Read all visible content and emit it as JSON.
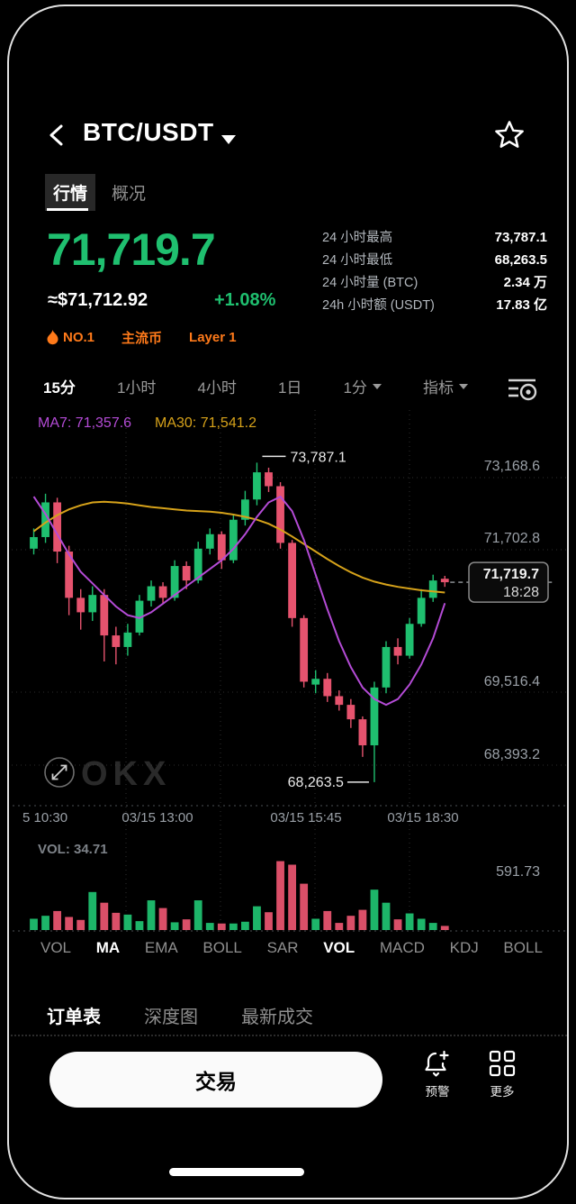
{
  "header": {
    "title": "BTC/USDT"
  },
  "tabs": [
    {
      "label": "行情",
      "active": true
    },
    {
      "label": "概况",
      "active": false
    }
  ],
  "price": {
    "last": "71,719.7",
    "fiat": "≈$71,712.92",
    "change": "+1.08%"
  },
  "stats": [
    {
      "label": "24 小时最高",
      "value": "73,787.1"
    },
    {
      "label": "24 小时最低",
      "value": "68,263.5"
    },
    {
      "label": "24 小时量 (BTC)",
      "value": "2.34 万"
    },
    {
      "label": "24h 小时额 (USDT)",
      "value": "17.83 亿"
    }
  ],
  "badges": [
    {
      "label": "NO.1"
    },
    {
      "label": "主流币"
    },
    {
      "label": "Layer 1"
    }
  ],
  "timeframes": [
    {
      "label": "15分",
      "active": true
    },
    {
      "label": "1小时",
      "active": false
    },
    {
      "label": "4小时",
      "active": false
    },
    {
      "label": "1日",
      "active": false
    },
    {
      "label": "1分",
      "active": false,
      "dropdown": true
    },
    {
      "label": "指标",
      "active": false,
      "dropdown": true
    }
  ],
  "chart": {
    "ma7_label": "MA7: 71,357.6",
    "ma30_label": "MA30: 71,541.2",
    "y_axis": [
      "73,168.6",
      "71,702.8",
      "69,516.4",
      "68,393.2"
    ],
    "x_axis": [
      "5 10:30",
      "03/15 13:00",
      "03/15 15:45",
      "03/15 18:30"
    ],
    "annotations": {
      "high": "73,787.1",
      "low": "68,263.5",
      "last": "71,719.7",
      "last_time": "18:28"
    },
    "watermark": "OKX",
    "vol_label": "VOL: 34.71",
    "vol_axis": "591.73"
  },
  "chart_data": {
    "type": "candlestick",
    "interval": "15m",
    "pair": "BTC/USDT",
    "ylim": [
      67950,
      74650
    ],
    "y_gridline_values": [
      73168.6,
      71702.8,
      69516.4,
      68393.2
    ],
    "x_ticks": [
      "5 10:30",
      "03/15 13:00",
      "03/15 15:45",
      "03/15 18:30"
    ],
    "high": 73787.1,
    "low": 68263.5,
    "last": 71719.7,
    "last_time": "18:28",
    "vol_max": 591.73,
    "vol_last": 34.71,
    "candles": [
      [
        72300,
        72650,
        72200,
        72500
      ],
      [
        72500,
        73250,
        72400,
        73100
      ],
      [
        73100,
        73180,
        72050,
        72250
      ],
      [
        72250,
        72350,
        71150,
        71450
      ],
      [
        71450,
        71600,
        70900,
        71200
      ],
      [
        71200,
        71650,
        71050,
        71500
      ],
      [
        71500,
        71600,
        70350,
        70800
      ],
      [
        70800,
        70950,
        70300,
        70600
      ],
      [
        70600,
        71000,
        70450,
        70850
      ],
      [
        70850,
        71500,
        70800,
        71400
      ],
      [
        71400,
        71750,
        71300,
        71650
      ],
      [
        71650,
        71720,
        71350,
        71450
      ],
      [
        71450,
        72100,
        71400,
        72000
      ],
      [
        72000,
        72080,
        71600,
        71750
      ],
      [
        71750,
        72420,
        71700,
        72300
      ],
      [
        72300,
        72650,
        72200,
        72550
      ],
      [
        72550,
        72600,
        71950,
        72100
      ],
      [
        72100,
        72900,
        72050,
        72800
      ],
      [
        72800,
        73300,
        72700,
        73150
      ],
      [
        73150,
        73787.1,
        73050,
        73620
      ],
      [
        73620,
        73700,
        73280,
        73380
      ],
      [
        73380,
        73450,
        72300,
        72400
      ],
      [
        72400,
        72450,
        70950,
        71100
      ],
      [
        71100,
        71150,
        69900,
        70000
      ],
      [
        69950,
        70200,
        69800,
        70050
      ],
      [
        70050,
        70150,
        69650,
        69750
      ],
      [
        69750,
        69850,
        69500,
        69600
      ],
      [
        69600,
        69700,
        69200,
        69350
      ],
      [
        69350,
        69400,
        68700,
        68900
      ],
      [
        68900,
        70000,
        68263.5,
        69900
      ],
      [
        69900,
        70700,
        69800,
        70600
      ],
      [
        70600,
        70750,
        70300,
        70450
      ],
      [
        70450,
        71100,
        70400,
        71000
      ],
      [
        71000,
        71600,
        70950,
        71450
      ],
      [
        71450,
        71850,
        71380,
        71750
      ],
      [
        71780,
        71830,
        71640,
        71719.7
      ]
    ],
    "volumes": [
      95,
      120,
      160,
      110,
      85,
      320,
      230,
      145,
      130,
      75,
      250,
      185,
      65,
      90,
      250,
      60,
      55,
      55,
      70,
      200,
      150,
      580,
      550,
      390,
      95,
      160,
      60,
      120,
      170,
      340,
      230,
      90,
      140,
      95,
      60,
      34.71
    ],
    "ma7": [
      73200,
      72900,
      72550,
      72200,
      71900,
      71700,
      71500,
      71300,
      71150,
      71100,
      71200,
      71350,
      71500,
      71650,
      71800,
      71950,
      72100,
      72300,
      72550,
      72850,
      73100,
      73200,
      72950,
      72450,
      71850,
      71250,
      70700,
      70250,
      69900,
      69700,
      69600,
      69700,
      69950,
      70300,
      70750,
      71357.6
    ],
    "ma30": [
      72600,
      72750,
      72880,
      72980,
      73050,
      73100,
      73110,
      73100,
      73080,
      73050,
      73020,
      73000,
      72980,
      72960,
      72950,
      72940,
      72920,
      72890,
      72850,
      72800,
      72730,
      72630,
      72510,
      72380,
      72250,
      72120,
      72000,
      71890,
      71800,
      71730,
      71680,
      71640,
      71610,
      71580,
      71560,
      71541.2
    ]
  },
  "indicators": [
    {
      "label": "VOL",
      "active": false
    },
    {
      "label": "MA",
      "active": true
    },
    {
      "label": "EMA",
      "active": false
    },
    {
      "label": "BOLL",
      "active": false
    },
    {
      "label": "SAR",
      "active": false
    },
    {
      "label": "VOL",
      "active": true
    },
    {
      "label": "MACD",
      "active": false
    },
    {
      "label": "KDJ",
      "active": false
    },
    {
      "label": "BOLL",
      "active": false
    }
  ],
  "order_tabs": [
    {
      "label": "订单表",
      "active": true
    },
    {
      "label": "深度图",
      "active": false
    },
    {
      "label": "最新成交",
      "active": false
    }
  ],
  "bottom_bar": {
    "trade": "交易",
    "alert": "预警",
    "more": "更多"
  },
  "colors": {
    "up": "#1fbf6f",
    "down": "#e6536e",
    "ma7": "#b44bd6",
    "ma30": "#d6a21a",
    "orange": "#ff7a1a",
    "axis_text": "#9aa0a7",
    "grid": "#2e2e2e"
  }
}
